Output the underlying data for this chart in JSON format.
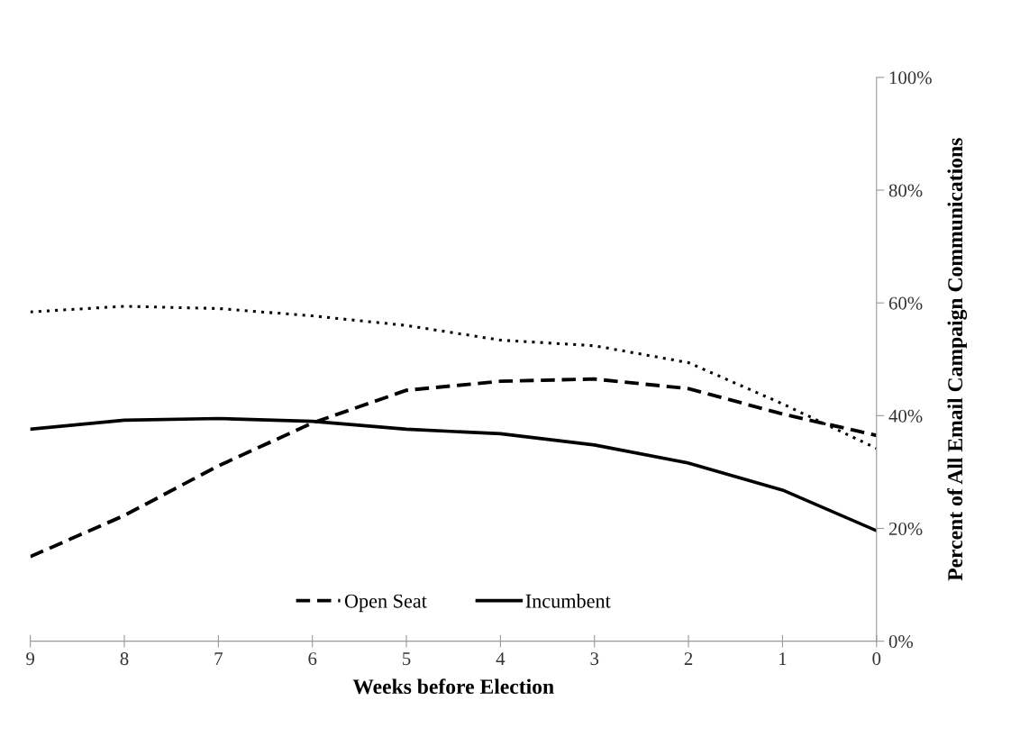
{
  "chart_data": {
    "type": "line",
    "xlabel": "Weeks before Election",
    "ylabel": "Percent of All Email Campaign Communications",
    "x": [
      9,
      8,
      7,
      6,
      5,
      4,
      3,
      2,
      1,
      0
    ],
    "series": [
      {
        "color": "#000000",
        "line_style": "dotted",
        "values": [
          58.4,
          59.4,
          59.0,
          57.7,
          56.0,
          53.4,
          52.4,
          49.4,
          42.1,
          34.2
        ]
      },
      {
        "name": "Open Seat",
        "color": "#000000",
        "line_style": "dashed",
        "values": [
          15.0,
          22.3,
          31.1,
          38.7,
          44.5,
          46.1,
          46.5,
          44.8,
          40.3,
          36.5
        ]
      },
      {
        "name": "Incumbent",
        "color": "#000000",
        "line_style": "solid",
        "values": [
          37.6,
          39.2,
          39.5,
          39.0,
          37.6,
          36.8,
          34.8,
          31.6,
          26.8,
          19.6
        ]
      }
    ],
    "xlim": [
      9,
      0
    ],
    "xticks": [
      9,
      8,
      7,
      6,
      5,
      4,
      3,
      2,
      1,
      0
    ],
    "ylim": [
      0,
      100
    ],
    "yticks": [
      {
        "value": 0,
        "label": "0%"
      },
      {
        "value": 20,
        "label": "20%"
      },
      {
        "value": 40,
        "label": "40%"
      },
      {
        "value": 60,
        "label": "60%"
      },
      {
        "value": 80,
        "label": "80%"
      },
      {
        "value": 100,
        "label": "100%"
      }
    ],
    "grid": false,
    "legend": "bottom",
    "marker": "none"
  }
}
